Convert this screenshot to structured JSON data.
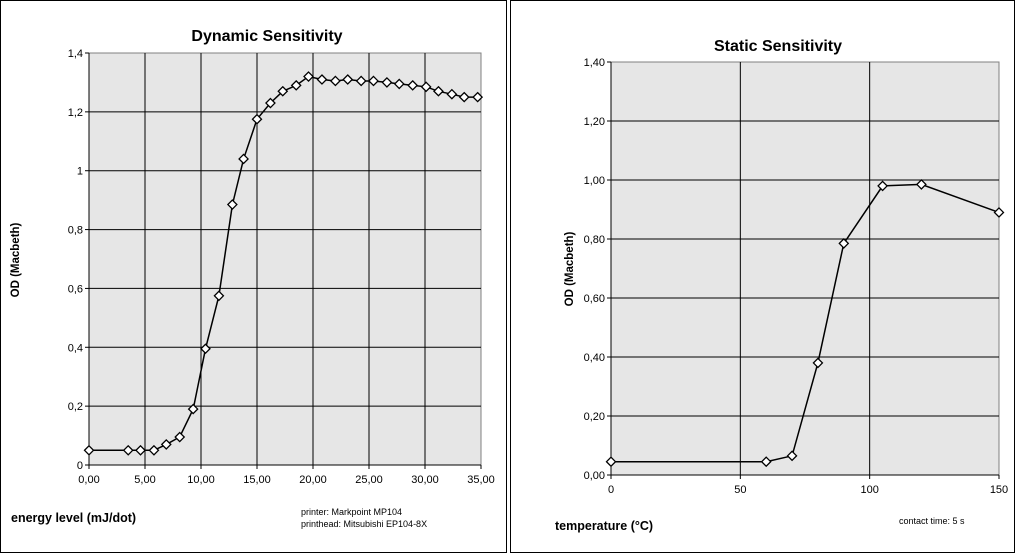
{
  "chart_data": [
    {
      "type": "line",
      "title": "Dynamic Sensitivity",
      "xlabel": "energy level (mJ/dot)",
      "ylabel": "OD (Macbeth)",
      "xlim": [
        0,
        35
      ],
      "ylim": [
        0,
        1.4
      ],
      "x_ticks": [
        "0,00",
        "5,00",
        "10,00",
        "15,00",
        "20,00",
        "25,00",
        "30,00",
        "35,00"
      ],
      "y_ticks": [
        "0",
        "0,2",
        "0,4",
        "0,6",
        "0,8",
        "1",
        "1,2",
        "1,4"
      ],
      "grid": true,
      "marker": "diamond",
      "annotations": [
        "printer: Markpoint MP104",
        "printhead: Mitsubishi EP104-8X"
      ],
      "series": [
        {
          "x": [
            0.0,
            3.5,
            4.6,
            5.8,
            6.9,
            8.1,
            9.3,
            10.4,
            11.6,
            12.8,
            13.8,
            15.0,
            16.2,
            17.3,
            18.5,
            19.6,
            20.8,
            22.0,
            23.1,
            24.3,
            25.4,
            26.6,
            27.7,
            28.9,
            30.1,
            31.2,
            32.4,
            33.5,
            34.7
          ],
          "y": [
            0.05,
            0.05,
            0.05,
            0.05,
            0.07,
            0.095,
            0.19,
            0.395,
            0.575,
            0.885,
            1.04,
            1.175,
            1.23,
            1.27,
            1.29,
            1.32,
            1.31,
            1.305,
            1.31,
            1.305,
            1.305,
            1.3,
            1.295,
            1.29,
            1.285,
            1.27,
            1.26,
            1.25,
            1.25
          ]
        }
      ]
    },
    {
      "type": "line",
      "title": "Static Sensitivity",
      "xlabel": "temperature (°C)",
      "ylabel": "OD (Macbeth)",
      "xlim": [
        0,
        150
      ],
      "ylim": [
        0,
        1.4
      ],
      "x_ticks": [
        "0",
        "50",
        "100",
        "150"
      ],
      "y_ticks": [
        "0,00",
        "0,20",
        "0,40",
        "0,60",
        "0,80",
        "1,00",
        "1,20",
        "1,40"
      ],
      "grid": true,
      "marker": "diamond",
      "annotations": [
        "contact time: 5 s"
      ],
      "series": [
        {
          "x": [
            0,
            60,
            70,
            80,
            90,
            105,
            120,
            150
          ],
          "y": [
            0.045,
            0.045,
            0.065,
            0.38,
            0.785,
            0.98,
            0.985,
            0.89
          ]
        }
      ]
    }
  ]
}
